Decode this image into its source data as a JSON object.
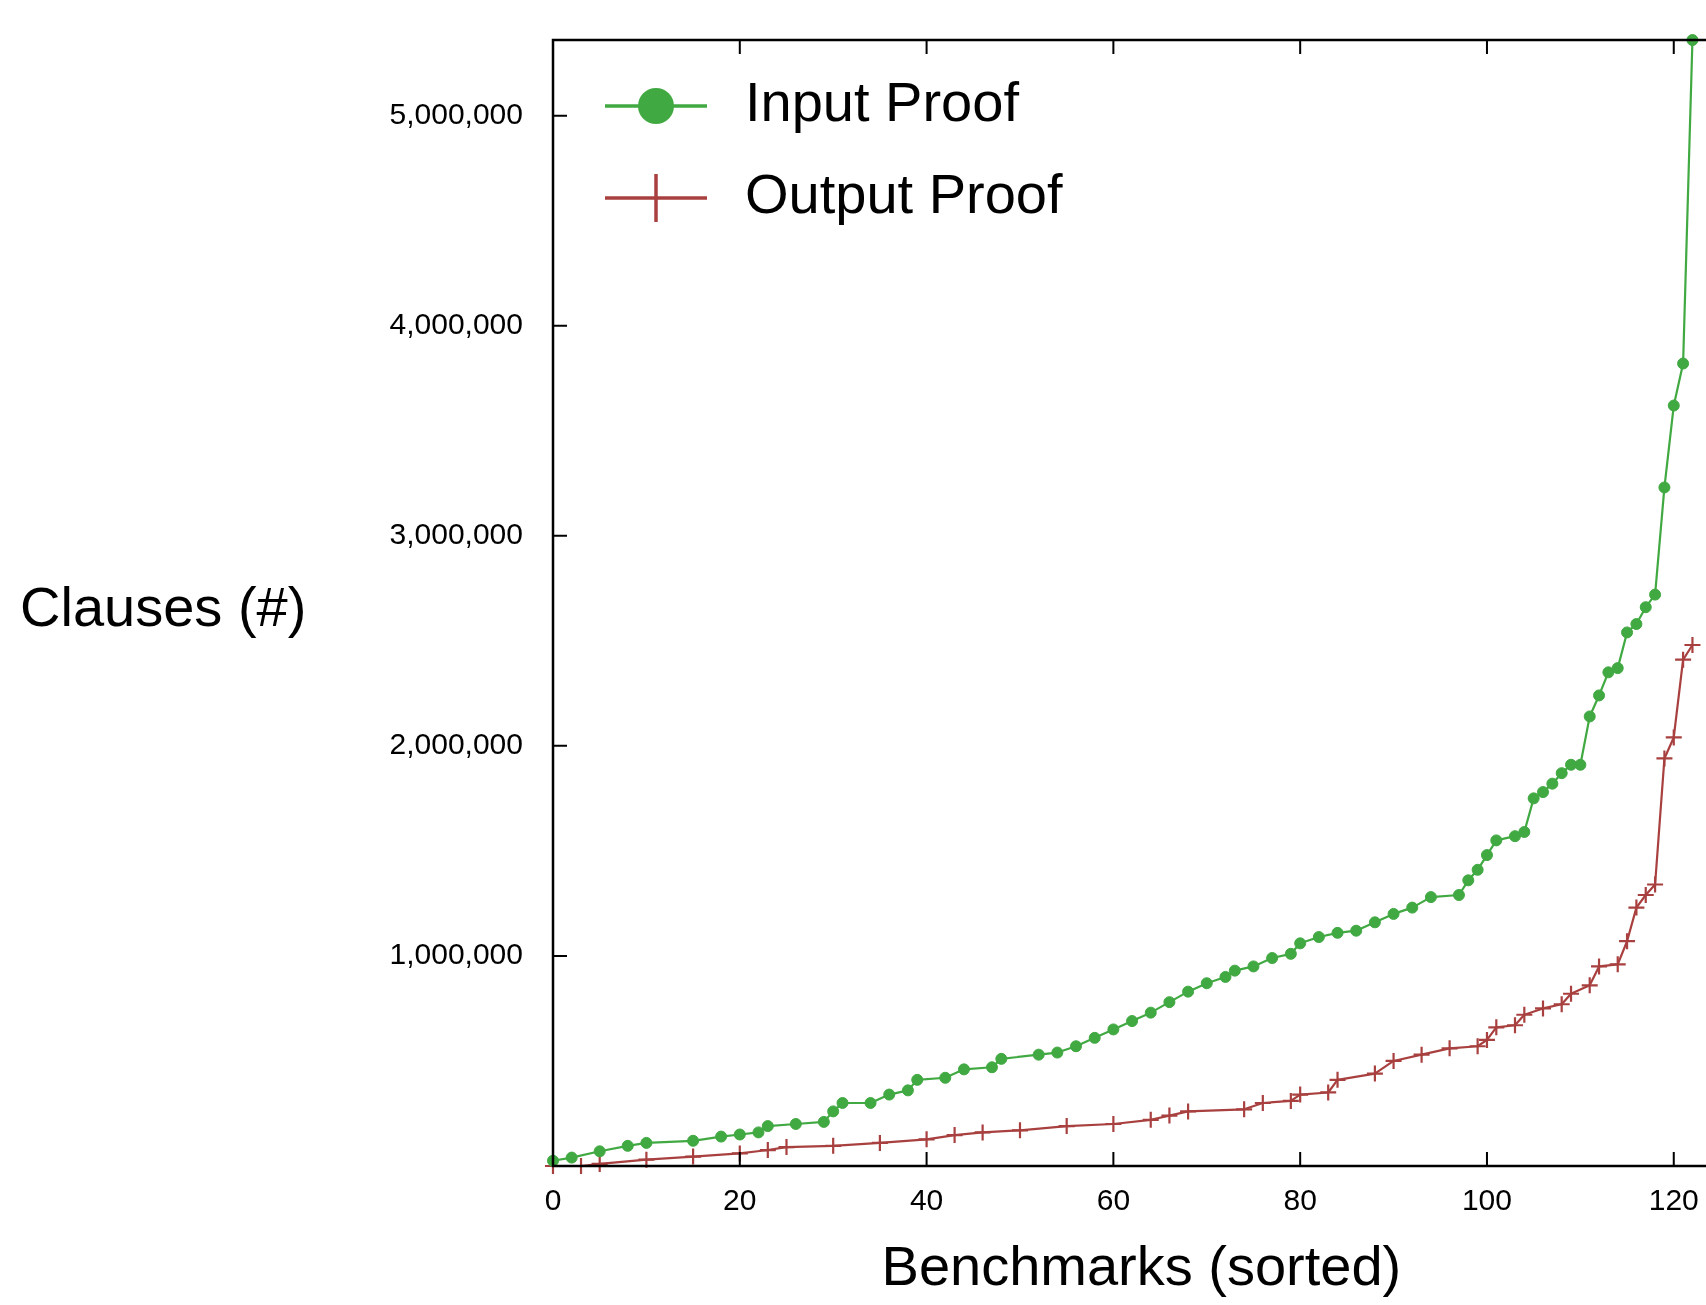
{
  "chart_data": {
    "type": "line",
    "xlabel": "Benchmarks (sorted)",
    "ylabel": "Clauses (#)",
    "xlim": [
      0,
      126
    ],
    "xticks": [
      0,
      20,
      40,
      60,
      80,
      100,
      120
    ],
    "ylim": [
      0,
      5360000
    ],
    "yticks": [
      {
        "value": 0,
        "label": null
      },
      {
        "value": 1000000,
        "label": "1,000,000"
      },
      {
        "value": 2000000,
        "label": "2,000,000"
      },
      {
        "value": 3000000,
        "label": "3,000,000"
      },
      {
        "value": 4000000,
        "label": "4,000,000"
      },
      {
        "value": 5000000,
        "label": "5,000,000"
      }
    ],
    "legend": "top left",
    "grid": false,
    "line_style": "solid",
    "series": [
      {
        "name": "Input Proof",
        "color": "#41a942",
        "marker": "circle",
        "x": [
          0,
          2,
          5,
          8,
          10,
          15,
          18,
          20,
          22,
          23,
          26,
          29,
          30,
          31,
          34,
          36,
          38,
          39,
          42,
          44,
          47,
          48,
          52,
          54,
          56,
          58,
          60,
          62,
          64,
          66,
          68,
          70,
          72,
          73,
          75,
          77,
          79,
          80,
          82,
          84,
          86,
          88,
          90,
          92,
          94,
          97,
          98,
          99,
          100,
          101,
          103,
          104,
          105,
          106,
          107,
          108,
          109,
          110,
          111,
          112,
          113,
          114,
          115,
          116,
          117,
          118,
          119,
          120,
          121,
          122
        ],
        "values": [
          25000,
          40000,
          70000,
          96000,
          110000,
          120000,
          140000,
          150000,
          160000,
          190000,
          200000,
          210000,
          260000,
          300000,
          300000,
          340000,
          360000,
          410000,
          420000,
          460000,
          470000,
          510000,
          530000,
          540000,
          570000,
          610000,
          650000,
          690000,
          730000,
          780000,
          830000,
          870000,
          900000,
          930000,
          950000,
          990000,
          1010000,
          1060000,
          1090000,
          1110000,
          1120000,
          1160000,
          1200000,
          1230000,
          1280000,
          1290000,
          1360000,
          1410000,
          1480000,
          1550000,
          1570000,
          1590000,
          1750000,
          1780000,
          1820000,
          1870000,
          1910000,
          1910000,
          2140000,
          2240000,
          2350000,
          2370000,
          2540000,
          2580000,
          2660000,
          2720000,
          3230000,
          3620000,
          3820000,
          5360000
        ]
      },
      {
        "name": "Output Proof",
        "color": "#a8403f",
        "marker": "cross",
        "x": [
          0,
          3,
          5,
          10,
          15,
          20,
          23,
          25,
          30,
          35,
          40,
          43,
          46,
          50,
          55,
          60,
          64,
          66,
          68,
          74,
          76,
          79,
          80,
          83,
          84,
          88,
          90,
          93,
          96,
          99,
          100,
          101,
          103,
          104,
          106,
          108,
          109,
          111,
          112,
          114,
          115,
          116,
          117,
          118,
          119,
          120,
          121,
          122
        ],
        "values": [
          0,
          0,
          10000,
          30000,
          45000,
          60000,
          76000,
          90000,
          96000,
          110000,
          127000,
          147000,
          160000,
          170000,
          190000,
          200000,
          220000,
          240000,
          260000,
          270000,
          300000,
          310000,
          340000,
          350000,
          410000,
          440000,
          500000,
          530000,
          560000,
          570000,
          600000,
          660000,
          670000,
          720000,
          750000,
          770000,
          820000,
          860000,
          950000,
          960000,
          1070000,
          1230000,
          1290000,
          1340000,
          1940000,
          2040000,
          2410000,
          2480000
        ]
      }
    ]
  }
}
